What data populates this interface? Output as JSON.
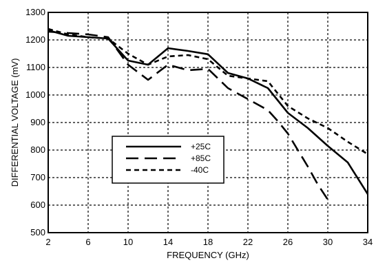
{
  "chart_data": {
    "type": "line",
    "xlabel": "FREQUENCY (GHz)",
    "ylabel": "DIFFERENTIAL VOLTAGE (mV)",
    "xlim": [
      2,
      34
    ],
    "ylim": [
      500,
      1300
    ],
    "xticks": [
      2,
      6,
      10,
      14,
      18,
      22,
      26,
      30,
      34
    ],
    "yticks": [
      500,
      600,
      700,
      800,
      900,
      1000,
      1100,
      1200,
      1300
    ],
    "grid": true,
    "legend_position": "lower-left",
    "series": [
      {
        "name": "+25C",
        "style": "solid",
        "color": "#000000",
        "points": [
          [
            2,
            1235
          ],
          [
            4,
            1215
          ],
          [
            6,
            1210
          ],
          [
            8,
            1205
          ],
          [
            10,
            1125
          ],
          [
            12,
            1110
          ],
          [
            14,
            1170
          ],
          [
            16,
            1160
          ],
          [
            18,
            1148
          ],
          [
            20,
            1080
          ],
          [
            22,
            1060
          ],
          [
            24,
            1025
          ],
          [
            26,
            935
          ],
          [
            28,
            880
          ],
          [
            30,
            815
          ],
          [
            32,
            755
          ],
          [
            34,
            640
          ]
        ]
      },
      {
        "name": "+85C",
        "style": "long-dash",
        "color": "#000000",
        "points": [
          [
            2,
            1230
          ],
          [
            4,
            1225
          ],
          [
            6,
            1220
          ],
          [
            8,
            1210
          ],
          [
            10,
            1110
          ],
          [
            12,
            1055
          ],
          [
            14,
            1110
          ],
          [
            16,
            1090
          ],
          [
            18,
            1095
          ],
          [
            20,
            1025
          ],
          [
            22,
            985
          ],
          [
            24,
            945
          ],
          [
            25,
            905
          ],
          [
            26,
            860
          ],
          [
            28,
            740
          ],
          [
            29,
            675
          ],
          [
            30,
            620
          ]
        ]
      },
      {
        "name": "-40C",
        "style": "short-dash",
        "color": "#000000",
        "points": [
          [
            2,
            1240
          ],
          [
            4,
            1220
          ],
          [
            6,
            1210
          ],
          [
            8,
            1205
          ],
          [
            10,
            1150
          ],
          [
            12,
            1110
          ],
          [
            14,
            1140
          ],
          [
            16,
            1145
          ],
          [
            18,
            1130
          ],
          [
            20,
            1070
          ],
          [
            22,
            1060
          ],
          [
            24,
            1050
          ],
          [
            26,
            960
          ],
          [
            28,
            915
          ],
          [
            30,
            880
          ],
          [
            32,
            830
          ],
          [
            34,
            785
          ]
        ]
      }
    ]
  }
}
